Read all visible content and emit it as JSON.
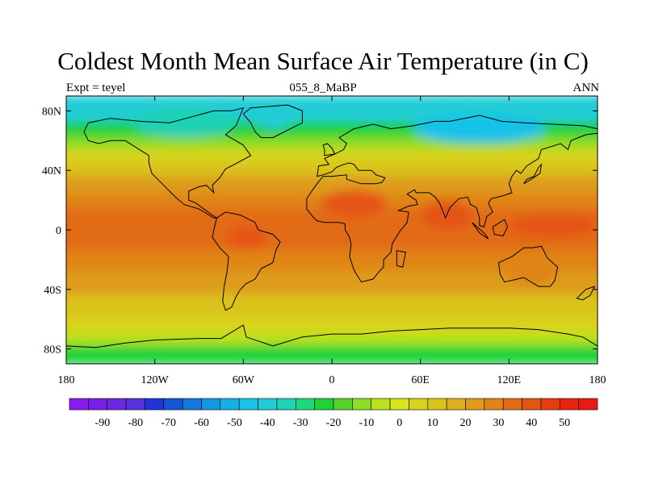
{
  "figure": {
    "title": "Coldest Month Mean Surface Air Temperature (in C)",
    "left_subtitle": "Expt = teyel",
    "center_subtitle": "055_8_MaBP",
    "right_subtitle": "ANN"
  },
  "map": {
    "projection": "cylindrical-equidistant",
    "lon_range": [
      -180,
      180
    ],
    "lat_range": [
      -90,
      90
    ],
    "lon_ticks": [
      {
        "value": -180,
        "label": "180"
      },
      {
        "value": -120,
        "label": "120W"
      },
      {
        "value": -60,
        "label": "60W"
      },
      {
        "value": 0,
        "label": "0"
      },
      {
        "value": 60,
        "label": "60E"
      },
      {
        "value": 120,
        "label": "120E"
      },
      {
        "value": 180,
        "label": "180"
      }
    ],
    "lat_ticks": [
      {
        "value": 80,
        "label": "80N"
      },
      {
        "value": 40,
        "label": "40N"
      },
      {
        "value": 0,
        "label": "0"
      },
      {
        "value": -40,
        "label": "40S"
      },
      {
        "value": -80,
        "label": "80S"
      }
    ],
    "temperature_bands": [
      {
        "lat_min": 72,
        "lat_max": 90,
        "value_c": -38
      },
      {
        "lat_min": 62,
        "lat_max": 72,
        "value_c": -25
      },
      {
        "lat_min": 54,
        "lat_max": 62,
        "value_c": -12
      },
      {
        "lat_min": 46,
        "lat_max": 54,
        "value_c": 2
      },
      {
        "lat_min": 36,
        "lat_max": 46,
        "value_c": 10
      },
      {
        "lat_min": 24,
        "lat_max": 36,
        "value_c": 18
      },
      {
        "lat_min": 14,
        "lat_max": 24,
        "value_c": 26
      },
      {
        "lat_min": -14,
        "lat_max": 14,
        "value_c": 33
      },
      {
        "lat_min": -28,
        "lat_max": -14,
        "value_c": 26
      },
      {
        "lat_min": -44,
        "lat_max": -28,
        "value_c": 20
      },
      {
        "lat_min": -60,
        "lat_max": -44,
        "value_c": 12
      },
      {
        "lat_min": -70,
        "lat_max": -60,
        "value_c": 4
      },
      {
        "lat_min": -78,
        "lat_max": -70,
        "value_c": -6
      },
      {
        "lat_min": -90,
        "lat_max": -78,
        "value_c": -25
      }
    ],
    "regional_anomalies": [
      {
        "name": "sahara-warm",
        "lon": 15,
        "lat": 18,
        "rx_deg": 22,
        "ry_deg": 9,
        "value_c": 38
      },
      {
        "name": "india-warm",
        "lon": 78,
        "lat": 10,
        "rx_deg": 18,
        "ry_deg": 10,
        "value_c": 38
      },
      {
        "name": "pacific-warm",
        "lon": 150,
        "lat": 3,
        "rx_deg": 30,
        "ry_deg": 8,
        "value_c": 36
      },
      {
        "name": "amazon-warm",
        "lon": -58,
        "lat": -5,
        "rx_deg": 14,
        "ry_deg": 8,
        "value_c": 38
      },
      {
        "name": "australia-warm",
        "lon": 135,
        "lat": -28,
        "rx_deg": 18,
        "ry_deg": 9,
        "value_c": 28
      },
      {
        "name": "siberia-cold",
        "lon": 100,
        "lat": 68,
        "rx_deg": 45,
        "ry_deg": 10,
        "value_c": -42
      },
      {
        "name": "arctic-canada-cold",
        "lon": -100,
        "lat": 72,
        "rx_deg": 35,
        "ry_deg": 10,
        "value_c": -35
      },
      {
        "name": "greenland-cold",
        "lon": -40,
        "lat": 76,
        "rx_deg": 15,
        "ry_deg": 8,
        "value_c": -40
      }
    ],
    "coastlines": [
      {
        "name": "north-america",
        "lonlat": [
          [
            -168,
            66
          ],
          [
            -165,
            72
          ],
          [
            -150,
            75
          ],
          [
            -130,
            73
          ],
          [
            -110,
            72
          ],
          [
            -95,
            76
          ],
          [
            -80,
            80
          ],
          [
            -68,
            80
          ],
          [
            -60,
            82
          ],
          [
            -65,
            70
          ],
          [
            -72,
            64
          ],
          [
            -60,
            57
          ],
          [
            -55,
            50
          ],
          [
            -66,
            44
          ],
          [
            -72,
            41
          ],
          [
            -76,
            35
          ],
          [
            -81,
            30
          ],
          [
            -80,
            25
          ],
          [
            -85,
            30
          ],
          [
            -90,
            29
          ],
          [
            -97,
            26
          ],
          [
            -97,
            20
          ],
          [
            -92,
            18
          ],
          [
            -84,
            12
          ],
          [
            -78,
            8
          ],
          [
            -80,
            8
          ],
          [
            -90,
            14
          ],
          [
            -100,
            17
          ],
          [
            -106,
            22
          ],
          [
            -112,
            28
          ],
          [
            -115,
            31
          ],
          [
            -118,
            34
          ],
          [
            -122,
            38
          ],
          [
            -124,
            45
          ],
          [
            -124,
            50
          ],
          [
            -132,
            55
          ],
          [
            -140,
            60
          ],
          [
            -150,
            60
          ],
          [
            -158,
            58
          ],
          [
            -165,
            60
          ],
          [
            -168,
            66
          ]
        ]
      },
      {
        "name": "greenland",
        "lonlat": [
          [
            -55,
            82
          ],
          [
            -30,
            84
          ],
          [
            -20,
            80
          ],
          [
            -20,
            72
          ],
          [
            -28,
            68
          ],
          [
            -40,
            62
          ],
          [
            -48,
            62
          ],
          [
            -52,
            66
          ],
          [
            -55,
            72
          ],
          [
            -60,
            78
          ],
          [
            -55,
            82
          ]
        ]
      },
      {
        "name": "south-america",
        "lonlat": [
          [
            -78,
            8
          ],
          [
            -72,
            12
          ],
          [
            -62,
            10
          ],
          [
            -52,
            5
          ],
          [
            -50,
            0
          ],
          [
            -40,
            -3
          ],
          [
            -35,
            -8
          ],
          [
            -38,
            -14
          ],
          [
            -40,
            -22
          ],
          [
            -48,
            -26
          ],
          [
            -52,
            -33
          ],
          [
            -58,
            -36
          ],
          [
            -62,
            -40
          ],
          [
            -65,
            -45
          ],
          [
            -68,
            -52
          ],
          [
            -72,
            -54
          ],
          [
            -74,
            -48
          ],
          [
            -73,
            -38
          ],
          [
            -71,
            -28
          ],
          [
            -70,
            -18
          ],
          [
            -76,
            -12
          ],
          [
            -81,
            -5
          ],
          [
            -80,
            0
          ],
          [
            -78,
            8
          ]
        ]
      },
      {
        "name": "eurasia-africa",
        "lonlat": [
          [
            -10,
            36
          ],
          [
            -9,
            43
          ],
          [
            -2,
            44
          ],
          [
            -5,
            48
          ],
          [
            2,
            51
          ],
          [
            8,
            54
          ],
          [
            10,
            58
          ],
          [
            5,
            62
          ],
          [
            15,
            68
          ],
          [
            28,
            71
          ],
          [
            40,
            68
          ],
          [
            55,
            70
          ],
          [
            70,
            73
          ],
          [
            80,
            73
          ],
          [
            100,
            77
          ],
          [
            115,
            73
          ],
          [
            130,
            72
          ],
          [
            150,
            71
          ],
          [
            170,
            70
          ],
          [
            180,
            68
          ],
          [
            180,
            65
          ],
          [
            172,
            64
          ],
          [
            162,
            60
          ],
          [
            160,
            54
          ],
          [
            155,
            58
          ],
          [
            142,
            54
          ],
          [
            140,
            48
          ],
          [
            132,
            43
          ],
          [
            128,
            38
          ],
          [
            125,
            40
          ],
          [
            122,
            36
          ],
          [
            120,
            31
          ],
          [
            122,
            25
          ],
          [
            116,
            23
          ],
          [
            108,
            21
          ],
          [
            106,
            18
          ],
          [
            109,
            12
          ],
          [
            105,
            9
          ],
          [
            103,
            2
          ],
          [
            100,
            3
          ],
          [
            100,
            8
          ],
          [
            98,
            15
          ],
          [
            94,
            17
          ],
          [
            92,
            22
          ],
          [
            86,
            21
          ],
          [
            80,
            15
          ],
          [
            77,
            8
          ],
          [
            73,
            18
          ],
          [
            70,
            22
          ],
          [
            66,
            25
          ],
          [
            57,
            25
          ],
          [
            56,
            27
          ],
          [
            51,
            24
          ],
          [
            57,
            20
          ],
          [
            58,
            17
          ],
          [
            52,
            16
          ],
          [
            45,
            13
          ],
          [
            52,
            12
          ],
          [
            51,
            5
          ],
          [
            46,
            -1
          ],
          [
            41,
            -9
          ],
          [
            40,
            -15
          ],
          [
            35,
            -20
          ],
          [
            35,
            -25
          ],
          [
            32,
            -28
          ],
          [
            28,
            -33
          ],
          [
            20,
            -35
          ],
          [
            18,
            -32
          ],
          [
            15,
            -27
          ],
          [
            12,
            -18
          ],
          [
            13,
            -10
          ],
          [
            12,
            -5
          ],
          [
            9,
            0
          ],
          [
            9,
            4
          ],
          [
            5,
            5
          ],
          [
            0,
            5
          ],
          [
            -5,
            5
          ],
          [
            -10,
            6
          ],
          [
            -13,
            9
          ],
          [
            -17,
            14
          ],
          [
            -17,
            21
          ],
          [
            -13,
            27
          ],
          [
            -10,
            31
          ],
          [
            -6,
            36
          ],
          [
            0,
            36
          ],
          [
            10,
            37
          ],
          [
            10,
            34
          ],
          [
            20,
            31
          ],
          [
            30,
            31
          ],
          [
            34,
            32
          ],
          [
            36,
            35
          ],
          [
            30,
            37
          ],
          [
            27,
            40
          ],
          [
            22,
            40
          ],
          [
            18,
            40
          ],
          [
            15,
            44
          ],
          [
            12,
            45
          ],
          [
            8,
            44
          ],
          [
            3,
            42
          ],
          [
            0,
            39
          ],
          [
            -6,
            37
          ],
          [
            -10,
            36
          ]
        ]
      },
      {
        "name": "australia",
        "lonlat": [
          [
            113,
            -22
          ],
          [
            122,
            -18
          ],
          [
            130,
            -12
          ],
          [
            136,
            -12
          ],
          [
            142,
            -11
          ],
          [
            146,
            -19
          ],
          [
            153,
            -25
          ],
          [
            151,
            -34
          ],
          [
            148,
            -38
          ],
          [
            140,
            -38
          ],
          [
            130,
            -32
          ],
          [
            117,
            -35
          ],
          [
            114,
            -30
          ],
          [
            113,
            -22
          ]
        ]
      },
      {
        "name": "britain",
        "lonlat": [
          [
            -5,
            50
          ],
          [
            2,
            51
          ],
          [
            0,
            55
          ],
          [
            -3,
            58
          ],
          [
            -6,
            57
          ],
          [
            -5,
            54
          ],
          [
            -5,
            50
          ]
        ]
      },
      {
        "name": "japan",
        "lonlat": [
          [
            130,
            31
          ],
          [
            135,
            34
          ],
          [
            141,
            38
          ],
          [
            142,
            44
          ],
          [
            140,
            42
          ],
          [
            137,
            36
          ],
          [
            132,
            34
          ],
          [
            130,
            31
          ]
        ]
      },
      {
        "name": "madagascar",
        "lonlat": [
          [
            44,
            -14
          ],
          [
            50,
            -15
          ],
          [
            48,
            -25
          ],
          [
            44,
            -24
          ],
          [
            44,
            -14
          ]
        ]
      },
      {
        "name": "new-zealand",
        "lonlat": [
          [
            166,
            -46
          ],
          [
            172,
            -40
          ],
          [
            178,
            -38
          ],
          [
            175,
            -44
          ],
          [
            170,
            -47
          ],
          [
            166,
            -46
          ]
        ]
      },
      {
        "name": "borneo",
        "lonlat": [
          [
            109,
            2
          ],
          [
            117,
            7
          ],
          [
            119,
            2
          ],
          [
            116,
            -4
          ],
          [
            110,
            -3
          ],
          [
            109,
            2
          ]
        ]
      },
      {
        "name": "sumatra",
        "lonlat": [
          [
            95,
            5
          ],
          [
            104,
            -3
          ],
          [
            106,
            -6
          ],
          [
            100,
            -2
          ],
          [
            95,
            5
          ]
        ]
      },
      {
        "name": "antarctica",
        "lonlat": [
          [
            -180,
            -78
          ],
          [
            -160,
            -79
          ],
          [
            -140,
            -76
          ],
          [
            -120,
            -74
          ],
          [
            -90,
            -73
          ],
          [
            -75,
            -73
          ],
          [
            -60,
            -64
          ],
          [
            -58,
            -72
          ],
          [
            -40,
            -78
          ],
          [
            -20,
            -72
          ],
          [
            0,
            -70
          ],
          [
            20,
            -70
          ],
          [
            40,
            -68
          ],
          [
            60,
            -67
          ],
          [
            80,
            -66
          ],
          [
            100,
            -66
          ],
          [
            120,
            -66
          ],
          [
            140,
            -67
          ],
          [
            160,
            -70
          ],
          [
            170,
            -72
          ],
          [
            180,
            -78
          ],
          [
            180,
            -90
          ],
          [
            -180,
            -90
          ],
          [
            -180,
            -78
          ]
        ]
      }
    ]
  },
  "colorbar": {
    "labels": [
      "-90",
      "-80",
      "-70",
      "-60",
      "-50",
      "-40",
      "-30",
      "-20",
      "-10",
      "0",
      "10",
      "20",
      "30",
      "40",
      "50"
    ],
    "colors": [
      "#8a1af0",
      "#7a1ee6",
      "#6a28e0",
      "#5a32dc",
      "#2034d8",
      "#1455d8",
      "#1478dc",
      "#1496e0",
      "#14b0e6",
      "#18c2e8",
      "#22ccd6",
      "#1ed2b4",
      "#1ed87a",
      "#1fd23a",
      "#56d22a",
      "#8edc26",
      "#b8e21e",
      "#d8e41e",
      "#d8d41e",
      "#dac41c",
      "#dcb01c",
      "#de9c1a",
      "#e08418",
      "#e26c16",
      "#e45414",
      "#e63c12",
      "#e82410",
      "#ea1a10"
    ],
    "min_value": -95,
    "max_value": 55
  }
}
